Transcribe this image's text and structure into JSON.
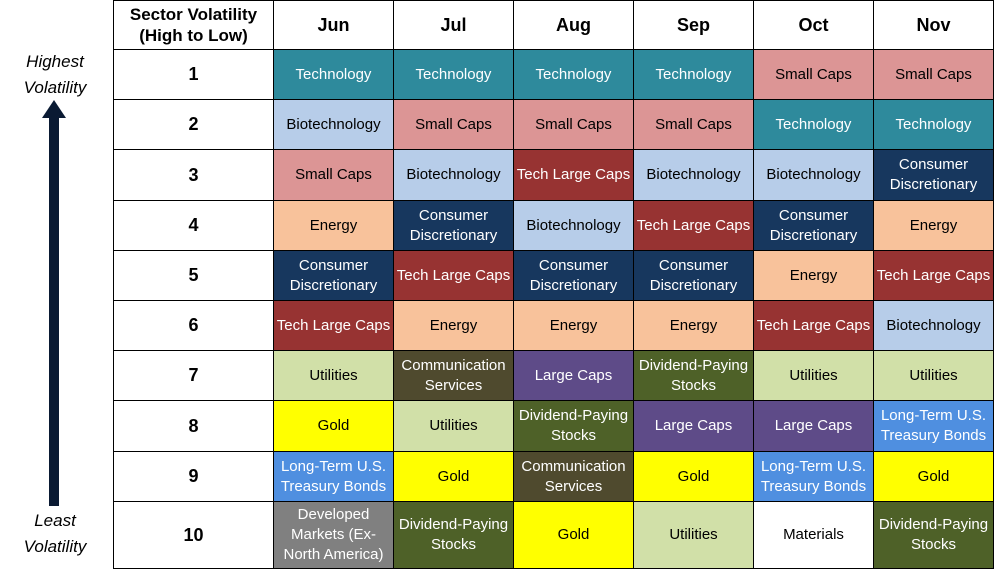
{
  "chart_data": {
    "type": "table",
    "title": "",
    "rank_header": "Sector Volatility (High to Low)",
    "top_label": "Highest\nVolatility",
    "bottom_label": "Least\nVolatility",
    "months": [
      "Jun",
      "Jul",
      "Aug",
      "Sep",
      "Oct",
      "Nov"
    ],
    "ranks": [
      "1",
      "2",
      "3",
      "4",
      "5",
      "6",
      "7",
      "8",
      "9",
      "10"
    ],
    "cells": [
      [
        "Technology",
        "Technology",
        "Technology",
        "Technology",
        "Small Caps",
        "Small Caps"
      ],
      [
        "Biotechnology",
        "Small Caps",
        "Small Caps",
        "Small Caps",
        "Technology",
        "Technology"
      ],
      [
        "Small Caps",
        "Biotechnology",
        "Tech Large Caps",
        "Biotechnology",
        "Biotechnology",
        "Consumer Discretionary"
      ],
      [
        "Energy",
        "Consumer Discretionary",
        "Biotechnology",
        "Tech Large Caps",
        "Consumer Discretionary",
        "Energy"
      ],
      [
        "Consumer Discretionary",
        "Tech Large Caps",
        "Consumer Discretionary",
        "Consumer Discretionary",
        "Energy",
        "Tech Large Caps"
      ],
      [
        "Tech Large Caps",
        "Energy",
        "Energy",
        "Energy",
        "Tech Large Caps",
        "Biotechnology"
      ],
      [
        "Utilities",
        "Communication Services",
        "Large Caps",
        "Dividend-Paying Stocks",
        "Utilities",
        "Utilities"
      ],
      [
        "Gold",
        "Utilities",
        "Dividend-Paying Stocks",
        "Large Caps",
        "Large Caps",
        "Long-Term U.S. Treasury Bonds"
      ],
      [
        "Long-Term U.S. Treasury Bonds",
        "Gold",
        "Communication Services",
        "Gold",
        "Long-Term U.S. Treasury Bonds",
        "Gold"
      ],
      [
        "Developed Markets (Ex-North America)",
        "Dividend-Paying Stocks",
        "Gold",
        "Utilities",
        "Materials",
        "Dividend-Paying Stocks"
      ]
    ],
    "sector_colors": {
      "Technology": {
        "bg": "#2e8a9c",
        "fg": "#ffffff"
      },
      "Small Caps": {
        "bg": "#dc9595",
        "fg": "#000000"
      },
      "Biotechnology": {
        "bg": "#b7cde9",
        "fg": "#000000"
      },
      "Tech Large Caps": {
        "bg": "#973332",
        "fg": "#ffffff"
      },
      "Consumer Discretionary": {
        "bg": "#17375e",
        "fg": "#ffffff"
      },
      "Energy": {
        "bg": "#f8c29b",
        "fg": "#000000"
      },
      "Utilities": {
        "bg": "#d1e0a8",
        "fg": "#000000"
      },
      "Communication Services": {
        "bg": "#4f4a2e",
        "fg": "#ffffff"
      },
      "Large Caps": {
        "bg": "#5e4b88",
        "fg": "#ffffff"
      },
      "Dividend-Paying Stocks": {
        "bg": "#4e6128",
        "fg": "#ffffff"
      },
      "Gold": {
        "bg": "#ffff00",
        "fg": "#000000"
      },
      "Long-Term U.S. Treasury Bonds": {
        "bg": "#4f8fe0",
        "fg": "#ffffff"
      },
      "Developed Markets (Ex-North America)": {
        "bg": "#808080",
        "fg": "#ffffff"
      },
      "Materials": {
        "bg": "#ffffff",
        "fg": "#000000"
      }
    },
    "arrow_color": "#0a1a33"
  }
}
